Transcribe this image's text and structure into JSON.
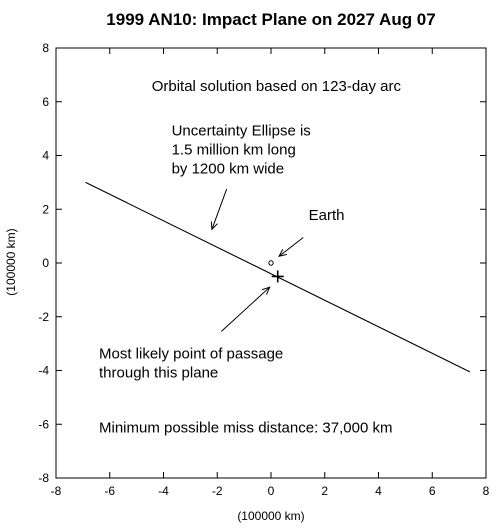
{
  "chart_data": {
    "type": "scatter",
    "title": "1999 AN10: Impact Plane on 2027 Aug 07",
    "xlabel": "(100000 km)",
    "ylabel": "(100000 km)",
    "xlim": [
      -8,
      8
    ],
    "ylim": [
      -8,
      8
    ],
    "x_ticks": [
      -8,
      -6,
      -4,
      -2,
      0,
      2,
      4,
      6,
      8
    ],
    "y_ticks": [
      -8,
      -6,
      -4,
      -2,
      0,
      2,
      4,
      6,
      8
    ],
    "grid": false,
    "series": [
      {
        "name": "Uncertainty Ellipse",
        "kind": "line",
        "points": [
          [
            -6.9,
            3.0
          ],
          [
            7.4,
            -4.05
          ]
        ]
      },
      {
        "name": "Earth",
        "kind": "point",
        "points": [
          [
            0.0,
            0.0
          ]
        ]
      },
      {
        "name": "Most likely point of passage",
        "kind": "cross",
        "points": [
          [
            0.25,
            -0.5
          ]
        ]
      }
    ],
    "annotations": [
      {
        "id": "arc",
        "lines": [
          "Orbital solution based on 123-day arc"
        ],
        "at": [
          0.2,
          6.4
        ],
        "anchor": "middle"
      },
      {
        "id": "ellipse",
        "lines": [
          "Uncertainty Ellipse is",
          "1.5 million km long",
          "by 1200 km wide"
        ],
        "at": [
          -3.7,
          4.75
        ],
        "anchor": "start",
        "arrow_from": [
          -1.65,
          2.75
        ],
        "arrow_to": [
          -2.2,
          1.25
        ]
      },
      {
        "id": "earth",
        "lines": [
          "Earth"
        ],
        "at": [
          1.4,
          1.6
        ],
        "anchor": "start",
        "arrow_from": [
          1.2,
          0.95
        ],
        "arrow_to": [
          0.3,
          0.25
        ]
      },
      {
        "id": "passage",
        "lines": [
          "Most likely point of passage",
          "through this plane"
        ],
        "at": [
          -6.4,
          -3.55
        ],
        "anchor": "start",
        "arrow_from": [
          -1.85,
          -2.55
        ],
        "arrow_to": [
          -0.05,
          -0.9
        ]
      },
      {
        "id": "miss",
        "lines": [
          "Minimum possible miss distance: 37,000 km"
        ],
        "at": [
          -6.4,
          -6.3
        ],
        "anchor": "start"
      }
    ]
  }
}
